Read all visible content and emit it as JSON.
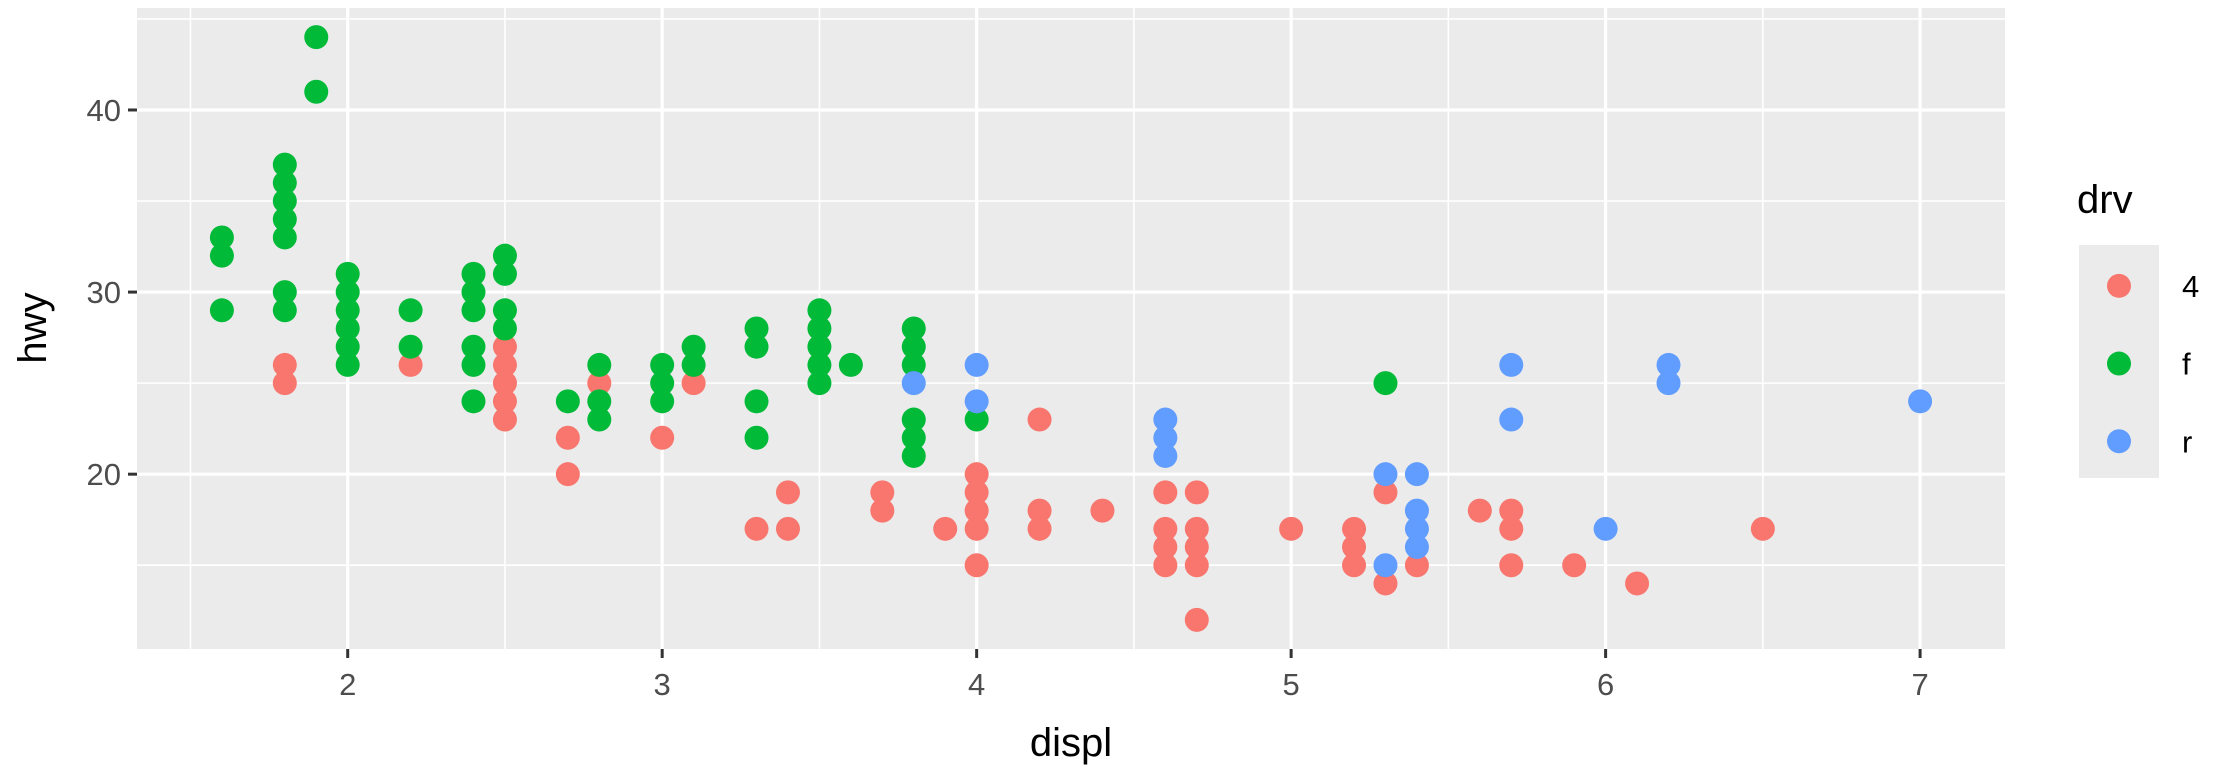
{
  "chart_data": {
    "type": "scatter",
    "title": "",
    "xlabel": "displ",
    "ylabel": "hwy",
    "xlim": [
      1.33,
      7.27
    ],
    "ylim": [
      10.4,
      45.6
    ],
    "x_ticks": [
      2,
      3,
      4,
      5,
      6,
      7
    ],
    "x_tick_labels": [
      "2",
      "3",
      "4",
      "5",
      "6",
      "7"
    ],
    "y_ticks": [
      20,
      30,
      40
    ],
    "y_tick_labels": [
      "20",
      "30",
      "40"
    ],
    "grid": true,
    "background": "#ebebeb",
    "legend": {
      "title": "drv",
      "position": "right",
      "entries": [
        {
          "label": "4",
          "color": "#F8766D"
        },
        {
          "label": "f",
          "color": "#00BA38"
        },
        {
          "label": "r",
          "color": "#619CFF"
        }
      ]
    },
    "series": [
      {
        "name": "4",
        "color": "#F8766D",
        "points": [
          [
            1.8,
            26
          ],
          [
            1.8,
            25
          ],
          [
            2.2,
            26
          ],
          [
            2.5,
            27
          ],
          [
            2.5,
            26
          ],
          [
            2.5,
            25
          ],
          [
            2.5,
            24
          ],
          [
            2.5,
            23
          ],
          [
            2.7,
            22
          ],
          [
            2.7,
            20
          ],
          [
            2.8,
            25
          ],
          [
            3.0,
            22
          ],
          [
            3.1,
            25
          ],
          [
            3.3,
            17
          ],
          [
            3.4,
            19
          ],
          [
            3.4,
            17
          ],
          [
            3.7,
            19
          ],
          [
            3.7,
            18
          ],
          [
            3.9,
            17
          ],
          [
            4.0,
            20
          ],
          [
            4.0,
            19
          ],
          [
            4.0,
            18
          ],
          [
            4.0,
            17
          ],
          [
            4.0,
            15
          ],
          [
            4.2,
            23
          ],
          [
            4.2,
            18
          ],
          [
            4.2,
            17
          ],
          [
            4.4,
            18
          ],
          [
            4.6,
            19
          ],
          [
            4.6,
            17
          ],
          [
            4.6,
            16
          ],
          [
            4.6,
            15
          ],
          [
            4.7,
            19
          ],
          [
            4.7,
            17
          ],
          [
            4.7,
            16
          ],
          [
            4.7,
            15
          ],
          [
            4.7,
            12
          ],
          [
            5.0,
            17
          ],
          [
            5.2,
            17
          ],
          [
            5.2,
            16
          ],
          [
            5.2,
            15
          ],
          [
            5.3,
            19
          ],
          [
            5.3,
            14
          ],
          [
            5.4,
            15
          ],
          [
            5.6,
            18
          ],
          [
            5.7,
            18
          ],
          [
            5.7,
            17
          ],
          [
            5.7,
            15
          ],
          [
            5.9,
            15
          ],
          [
            6.1,
            14
          ],
          [
            6.5,
            17
          ]
        ]
      },
      {
        "name": "f",
        "color": "#00BA38",
        "points": [
          [
            1.6,
            33
          ],
          [
            1.6,
            32
          ],
          [
            1.6,
            29
          ],
          [
            1.8,
            37
          ],
          [
            1.8,
            36
          ],
          [
            1.8,
            35
          ],
          [
            1.8,
            34
          ],
          [
            1.8,
            33
          ],
          [
            1.8,
            30
          ],
          [
            1.8,
            29
          ],
          [
            1.9,
            44
          ],
          [
            1.9,
            41
          ],
          [
            2.0,
            31
          ],
          [
            2.0,
            30
          ],
          [
            2.0,
            29
          ],
          [
            2.0,
            28
          ],
          [
            2.0,
            27
          ],
          [
            2.0,
            26
          ],
          [
            2.2,
            29
          ],
          [
            2.2,
            27
          ],
          [
            2.4,
            31
          ],
          [
            2.4,
            30
          ],
          [
            2.4,
            29
          ],
          [
            2.4,
            27
          ],
          [
            2.4,
            26
          ],
          [
            2.4,
            24
          ],
          [
            2.5,
            32
          ],
          [
            2.5,
            31
          ],
          [
            2.5,
            29
          ],
          [
            2.5,
            28
          ],
          [
            2.8,
            26
          ],
          [
            2.8,
            24
          ],
          [
            2.8,
            23
          ],
          [
            2.7,
            24
          ],
          [
            3.0,
            26
          ],
          [
            3.0,
            25
          ],
          [
            3.0,
            24
          ],
          [
            3.1,
            27
          ],
          [
            3.1,
            26
          ],
          [
            3.3,
            28
          ],
          [
            3.3,
            27
          ],
          [
            3.3,
            24
          ],
          [
            3.3,
            22
          ],
          [
            3.5,
            29
          ],
          [
            3.5,
            28
          ],
          [
            3.5,
            27
          ],
          [
            3.5,
            26
          ],
          [
            3.5,
            25
          ],
          [
            3.6,
            26
          ],
          [
            3.8,
            28
          ],
          [
            3.8,
            27
          ],
          [
            3.8,
            26
          ],
          [
            3.8,
            23
          ],
          [
            3.8,
            22
          ],
          [
            3.8,
            21
          ],
          [
            4.0,
            23
          ],
          [
            5.3,
            25
          ]
        ]
      },
      {
        "name": "r",
        "color": "#619CFF",
        "points": [
          [
            3.8,
            25
          ],
          [
            4.0,
            26
          ],
          [
            4.0,
            24
          ],
          [
            4.6,
            23
          ],
          [
            4.6,
            22
          ],
          [
            4.6,
            21
          ],
          [
            5.3,
            20
          ],
          [
            5.3,
            15
          ],
          [
            5.4,
            20
          ],
          [
            5.4,
            18
          ],
          [
            5.4,
            17
          ],
          [
            5.4,
            16
          ],
          [
            5.7,
            26
          ],
          [
            5.7,
            23
          ],
          [
            6.0,
            17
          ],
          [
            6.2,
            26
          ],
          [
            6.2,
            25
          ],
          [
            7.0,
            24
          ]
        ]
      }
    ]
  }
}
